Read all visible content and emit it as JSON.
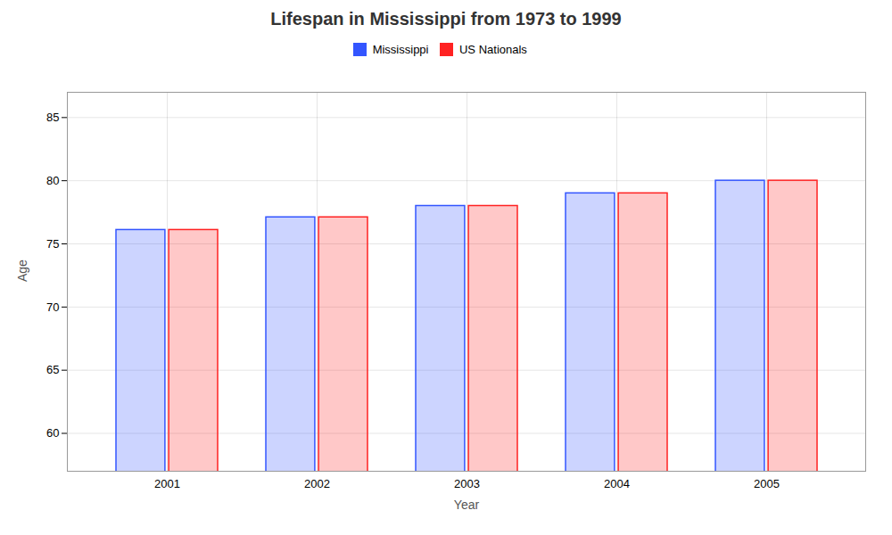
{
  "chart_data": {
    "type": "bar",
    "title": "Lifespan in Mississippi from 1973 to 1999",
    "xlabel": "Year",
    "ylabel": "Age",
    "categories": [
      "2001",
      "2002",
      "2003",
      "2004",
      "2005"
    ],
    "series": [
      {
        "name": "Mississippi",
        "color": "#3355ff",
        "values": [
          76.1,
          77.1,
          78.0,
          79.0,
          80.0
        ]
      },
      {
        "name": "US Nationals",
        "color": "#ff2222",
        "values": [
          76.1,
          77.1,
          78.0,
          79.0,
          80.0
        ]
      }
    ],
    "ylim": [
      57,
      87
    ],
    "yticks": [
      60,
      65,
      70,
      75,
      80,
      85
    ],
    "grid": true,
    "legend": "top"
  }
}
